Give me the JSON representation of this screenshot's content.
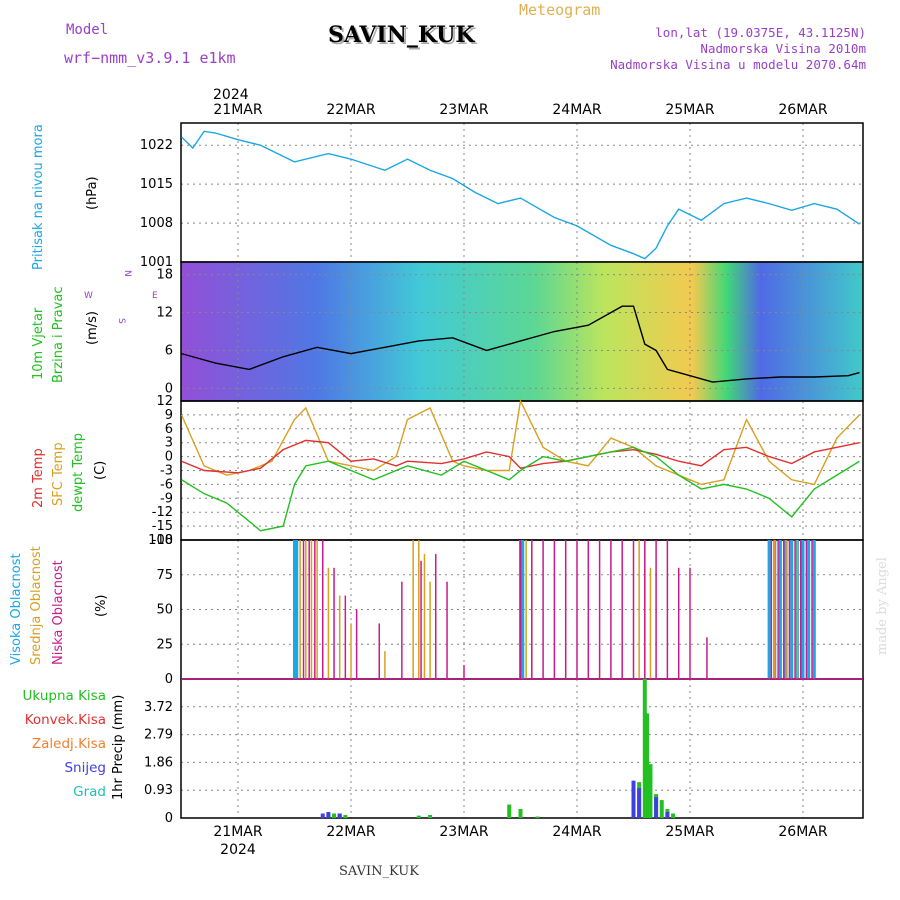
{
  "header": {
    "model_label": "Model",
    "model_name": "wrf−nmm_v3.9.1  e1km",
    "station": "SAVIN_KUK",
    "product": "Meteogram",
    "lonlat": "lon,lat (19.0375E, 43.1125N)",
    "elevation": "Nadmorska Visina 2010m",
    "model_elevation": "Nadmorska Visina u modelu 2070.64m",
    "year": "2024",
    "footer_station": "SAVIN_KUK",
    "watermark": "made by Angel"
  },
  "colors": {
    "pressure": "#1ba6e6",
    "wind_label": "#22c022",
    "temp2m": "#e03030",
    "sfc": "#d8a020",
    "dewpt": "#22c022",
    "high_cloud": "#1ba6e6",
    "mid_cloud": "#d8a020",
    "low_cloud": "#c81b8c",
    "total_precip": "#22c022",
    "conv_precip": "#e03030",
    "frozen_precip": "#f08030",
    "snow": "#4040e0",
    "hail": "#20c0b0",
    "header_purple": "#9a40c8",
    "header_gold": "#e0b050"
  },
  "chart_data": [
    {
      "type": "line",
      "panel": "pressure",
      "title": "Pritisak na nivou mora",
      "ylabel": "(hPa)",
      "ylim": [
        1001,
        1026
      ],
      "yticks": [
        1001,
        1008,
        1015,
        1022
      ],
      "x_days": [
        "21MAR",
        "22MAR",
        "23MAR",
        "24MAR",
        "25MAR",
        "26MAR"
      ],
      "series": [
        {
          "x": [
            0,
            0.1,
            0.2,
            0.3,
            0.5,
            0.7,
            1.0,
            1.3,
            1.5,
            1.8,
            2.0,
            2.2,
            2.4,
            2.6,
            2.8,
            3.0,
            3.3,
            3.5,
            3.8,
            4.0,
            4.1,
            4.2,
            4.3,
            4.4,
            4.6,
            4.8,
            5.0,
            5.2,
            5.4,
            5.6,
            5.8,
            6.0
          ],
          "values": [
            1023.5,
            1021.5,
            1024.5,
            1024.2,
            1023,
            1022,
            1019,
            1020.5,
            1019.5,
            1017.5,
            1019.5,
            1017.5,
            1016,
            1013.5,
            1011.5,
            1012.5,
            1009,
            1007.5,
            1004,
            1002.5,
            1001.6,
            1003.5,
            1007.5,
            1010.5,
            1008.5,
            1011.5,
            1012.5,
            1011.5,
            1010.3,
            1011.5,
            1010.5,
            1007.8
          ]
        }
      ]
    },
    {
      "type": "line",
      "panel": "wind",
      "title": "10m Vjetar Brzina i Pravac",
      "ylabel": "(m/s)",
      "ylim": [
        -2,
        20
      ],
      "yticks": [
        0,
        6,
        12,
        18
      ],
      "compass": [
        "N",
        "E",
        "S",
        "W"
      ],
      "series": [
        {
          "name": "speed",
          "x": [
            0,
            0.3,
            0.6,
            0.9,
            1.2,
            1.5,
            1.8,
            2.1,
            2.4,
            2.7,
            3.0,
            3.3,
            3.6,
            3.9,
            4.0,
            4.1,
            4.2,
            4.3,
            4.5,
            4.7,
            5.0,
            5.3,
            5.6,
            5.9,
            6.0
          ],
          "values": [
            5.5,
            4,
            3,
            5,
            6.5,
            5.5,
            6.5,
            7.5,
            8,
            6,
            7.5,
            9,
            10,
            13,
            13,
            7,
            6,
            3,
            2,
            1,
            1.5,
            1.8,
            1.8,
            2,
            2.5
          ]
        }
      ]
    },
    {
      "type": "line",
      "panel": "temperature",
      "title": "2m Temp / SFC Temp / dewpt Temp",
      "ylabel": "(C)",
      "ylim": [
        -18,
        12
      ],
      "yticks": [
        -18,
        -15,
        -12,
        -9,
        -6,
        -3,
        0,
        3,
        6,
        9,
        12
      ],
      "series": [
        {
          "name": "2m Temp",
          "x": [
            0,
            0.2,
            0.5,
            0.7,
            0.9,
            1.1,
            1.3,
            1.5,
            1.7,
            1.9,
            2.0,
            2.3,
            2.5,
            2.7,
            2.9,
            3.0,
            3.2,
            3.4,
            3.6,
            3.8,
            4.0,
            4.2,
            4.4,
            4.6,
            4.8,
            5.0,
            5.2,
            5.4,
            5.6,
            5.8,
            6.0
          ],
          "values": [
            -1,
            -3,
            -3.5,
            -2.5,
            1.5,
            3.5,
            3,
            -1,
            -0.5,
            -2,
            -1,
            -1.5,
            -0.5,
            1,
            0,
            -2.5,
            -1.5,
            -1,
            0,
            1,
            1.5,
            0.5,
            -1,
            -2,
            1.5,
            2,
            0,
            -1.5,
            1,
            2,
            3
          ]
        },
        {
          "name": "SFC Temp",
          "x": [
            0,
            0.2,
            0.4,
            0.6,
            0.8,
            1.0,
            1.1,
            1.3,
            1.5,
            1.7,
            1.9,
            2.0,
            2.2,
            2.4,
            2.5,
            2.7,
            2.9,
            3.0,
            3.2,
            3.4,
            3.6,
            3.8,
            4.0,
            4.2,
            4.4,
            4.6,
            4.8,
            5.0,
            5.2,
            5.4,
            5.6,
            5.8,
            6.0
          ],
          "values": [
            9,
            -2,
            -4,
            -3,
            -1,
            8,
            10.5,
            -1,
            -2,
            -3,
            0,
            8,
            10.5,
            -1,
            -2,
            -3,
            -3,
            12,
            2,
            -1,
            -2,
            4,
            2,
            -2,
            -4,
            -6,
            -5,
            8,
            -1,
            -5,
            -6,
            4,
            9
          ]
        },
        {
          "name": "dewpt Temp",
          "x": [
            0,
            0.2,
            0.4,
            0.5,
            0.7,
            0.9,
            1.0,
            1.1,
            1.3,
            1.5,
            1.7,
            2.0,
            2.3,
            2.5,
            2.7,
            2.9,
            3.0,
            3.2,
            3.4,
            3.6,
            3.8,
            4.0,
            4.2,
            4.4,
            4.6,
            4.8,
            5.0,
            5.2,
            5.4,
            5.6,
            5.8,
            6.0
          ],
          "values": [
            -5,
            -8,
            -10,
            -12,
            -16,
            -15,
            -6,
            -2,
            -1,
            -3,
            -5,
            -2,
            -4,
            -1,
            -3,
            -5,
            -3,
            0,
            -1,
            0,
            1,
            2,
            0,
            -4,
            -7,
            -6,
            -7,
            -9,
            -13,
            -7,
            -4,
            -1
          ]
        }
      ]
    },
    {
      "type": "bar",
      "panel": "clouds",
      "title": "Visoka / Srednja / Niska Oblacnost",
      "ylabel": "(%)",
      "ylim": [
        0,
        100
      ],
      "yticks": [
        0,
        25,
        50,
        75,
        100
      ],
      "series": [
        {
          "name": "Visoka Oblacnost",
          "x": [
            1.0,
            1.02,
            3.0,
            3.02,
            5.2,
            5.25,
            5.3,
            5.35,
            5.4,
            5.45,
            5.5,
            5.55,
            5.6
          ],
          "values": [
            100,
            100,
            100,
            100,
            100,
            100,
            100,
            100,
            100,
            100,
            100,
            100,
            100
          ]
        },
        {
          "name": "Srednja Oblacnost",
          "x": [
            1.05,
            1.1,
            1.15,
            1.2,
            1.3,
            1.4,
            1.5,
            1.8,
            2.05,
            2.1,
            2.15,
            2.2,
            3.05,
            3.1,
            4.05,
            4.1,
            4.15,
            5.25,
            5.35,
            5.45
          ],
          "values": [
            100,
            100,
            100,
            100,
            80,
            60,
            40,
            20,
            100,
            100,
            90,
            70,
            100,
            100,
            100,
            100,
            80,
            100,
            100,
            100
          ]
        },
        {
          "name": "Niska Oblacnost",
          "x": [
            1.08,
            1.13,
            1.18,
            1.25,
            1.35,
            1.45,
            1.55,
            1.75,
            1.95,
            2.12,
            2.25,
            2.35,
            2.5,
            3.0,
            3.1,
            3.2,
            3.3,
            3.4,
            3.5,
            3.6,
            3.7,
            3.8,
            3.9,
            4.0,
            4.1,
            4.2,
            4.3,
            4.4,
            4.5,
            4.65,
            5.22,
            5.28,
            5.33,
            5.38,
            5.43,
            5.48,
            5.53,
            5.58
          ],
          "values": [
            100,
            100,
            100,
            100,
            80,
            60,
            50,
            40,
            70,
            85,
            90,
            70,
            10,
            100,
            100,
            100,
            100,
            100,
            100,
            100,
            100,
            100,
            100,
            100,
            100,
            100,
            100,
            80,
            80,
            30,
            100,
            100,
            100,
            100,
            100,
            100,
            100,
            100
          ]
        }
      ]
    },
    {
      "type": "bar",
      "panel": "precip",
      "title": "1hr Precip",
      "ylabel": "(mm)",
      "ylim": [
        0,
        4.65
      ],
      "yticks": [
        0,
        0.93,
        1.86,
        2.79,
        3.72
      ],
      "legend": [
        "Ukupna Kisa",
        "Konvek.Kisa",
        "Zaledj.Kisa",
        "Snijeg",
        "Grad"
      ],
      "series": [
        {
          "name": "Ukupna Kisa",
          "x": [
            1.3,
            1.35,
            1.4,
            1.45,
            2.1,
            2.2,
            2.9,
            3.0,
            3.15,
            4.0,
            4.05,
            4.1,
            4.12,
            4.15,
            4.2,
            4.25,
            4.3,
            4.35
          ],
          "values": [
            0.1,
            0.15,
            0.15,
            0.1,
            0.08,
            0.1,
            0.45,
            0.3,
            0.05,
            1.0,
            1.2,
            4.65,
            3.5,
            1.8,
            0.8,
            0.6,
            0.3,
            0.15
          ]
        },
        {
          "name": "Snijeg",
          "x": [
            1.25,
            1.3,
            1.4,
            4.0,
            4.05,
            4.2,
            4.3
          ],
          "values": [
            0.15,
            0.2,
            0.15,
            1.25,
            1.0,
            0.7,
            0.2
          ]
        }
      ],
      "x_labels": [
        "21MAR",
        "22MAR",
        "23MAR",
        "24MAR",
        "25MAR",
        "26MAR"
      ],
      "year": "2024"
    }
  ]
}
